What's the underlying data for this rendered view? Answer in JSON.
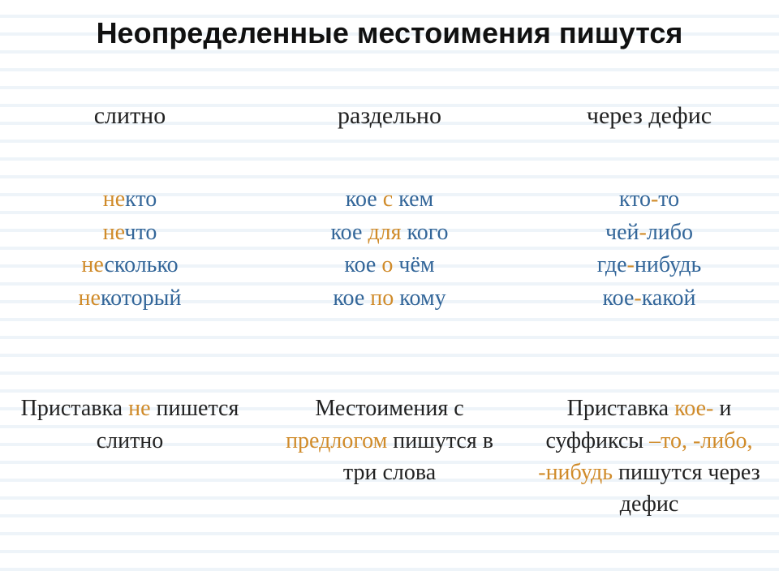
{
  "title": "Неопределенные местоимения пишутся",
  "colors": {
    "orange": "#d08b2a",
    "blue": "#336699",
    "text": "#222222",
    "title": "#111111",
    "bg": "#ffffff",
    "stripe": "#eef4f9"
  },
  "typography": {
    "title_family": "Arial",
    "title_weight": "700",
    "title_size_pt": 27,
    "body_family": "Times New Roman",
    "head_size_pt": 22,
    "example_size_pt": 21,
    "rule_size_pt": 21
  },
  "columns": {
    "col1": {
      "header": "слитно"
    },
    "col2": {
      "header": "раздельно"
    },
    "col3": {
      "header": "через дефис"
    }
  },
  "examples": {
    "col1": [
      {
        "prefix": "не",
        "word": "кто"
      },
      {
        "prefix": "не",
        "word": "что"
      },
      {
        "prefix": "не",
        "word": "сколько"
      },
      {
        "prefix": "не",
        "word": "который"
      }
    ],
    "col2": [
      {
        "p1": "кое",
        "mid": " с ",
        "p2": "кем"
      },
      {
        "p1": "кое",
        "mid": " для ",
        "p2": "кого"
      },
      {
        "p1": "кое",
        "mid": " о ",
        "p2": "чём"
      },
      {
        "p1": "кое",
        "mid": " по ",
        "p2": "кому"
      }
    ],
    "col3": [
      {
        "p1": "кто",
        "hy": "-",
        "p2": "то"
      },
      {
        "p1": "чей",
        "hy": "-",
        "p2": "либо"
      },
      {
        "p1": "где",
        "hy": "-",
        "p2": "нибудь"
      },
      {
        "p1": "кое",
        "hy": "-",
        "p2": "какой"
      }
    ]
  },
  "rules": {
    "col1": {
      "t1": "Приставка ",
      "hl1": "не",
      "t2": " пишется слитно"
    },
    "col2": {
      "t1": "Местоимения с ",
      "hl1": "предлогом",
      "t2": " пишутся в три слова"
    },
    "col3": {
      "t1": "Приставка ",
      "hl1": "кое-",
      "t2": " и суффиксы ",
      "hl2": "–то, -либо, -нибудь",
      "t3": " пишутся через дефис"
    }
  }
}
